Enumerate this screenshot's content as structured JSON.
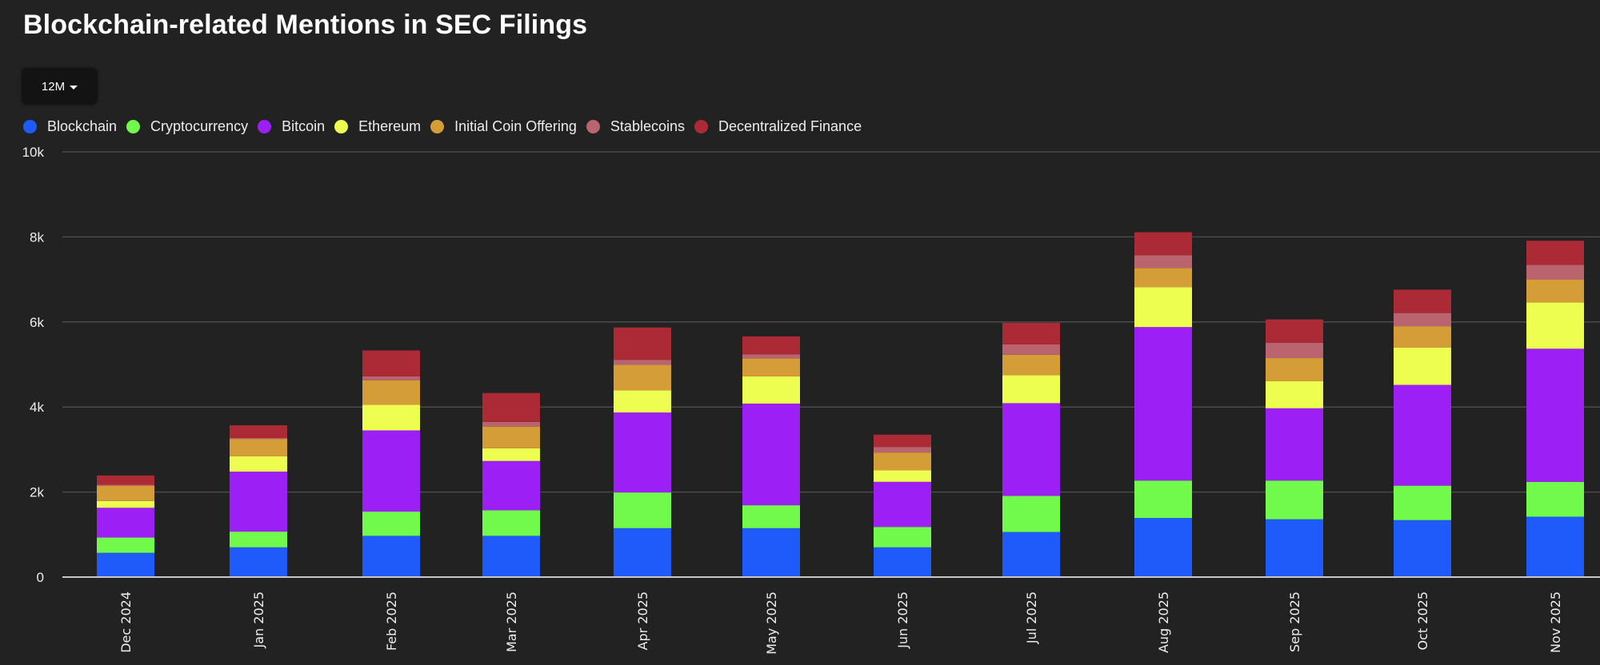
{
  "header": {
    "title": "Blockchain-related Mentions in SEC Filings"
  },
  "controls": {
    "range_selector": {
      "selected": "12M",
      "icon": "caret-down-icon"
    }
  },
  "chart_data": {
    "type": "bar",
    "stacked": true,
    "title": "Blockchain-related Mentions in SEC Filings",
    "xlabel": "",
    "ylabel": "",
    "ylim": [
      0,
      10000
    ],
    "yticks": [
      0,
      2000,
      4000,
      6000,
      8000,
      10000
    ],
    "ytick_labels": [
      "0",
      "2k",
      "4k",
      "6k",
      "8k",
      "10k"
    ],
    "grid": true,
    "legend_position": "top-left",
    "categories": [
      "Dec 2024",
      "Jan 2025",
      "Feb 2025",
      "Mar 2025",
      "Apr 2025",
      "May 2025",
      "Jun 2025",
      "Jul 2025",
      "Aug 2025",
      "Sep 2025",
      "Oct 2025",
      "Nov 2025"
    ],
    "series": [
      {
        "name": "Blockchain",
        "color": "#1f5bfa",
        "values": [
          570,
          700,
          970,
          970,
          1150,
          1150,
          700,
          1060,
          1390,
          1360,
          1340,
          1420
        ]
      },
      {
        "name": "Cryptocurrency",
        "color": "#71f94c",
        "values": [
          360,
          370,
          570,
          600,
          840,
          540,
          480,
          850,
          880,
          910,
          810,
          820
        ]
      },
      {
        "name": "Bitcoin",
        "color": "#9c1ff5",
        "values": [
          700,
          1410,
          1910,
          1160,
          1880,
          2390,
          1060,
          2180,
          3610,
          1700,
          2370,
          3130
        ]
      },
      {
        "name": "Ethereum",
        "color": "#eefe51",
        "values": [
          160,
          360,
          600,
          300,
          520,
          640,
          270,
          660,
          940,
          640,
          880,
          1090
        ]
      },
      {
        "name": "Initial Coin Offering",
        "color": "#d49d37",
        "values": [
          360,
          410,
          580,
          510,
          600,
          420,
          420,
          480,
          450,
          540,
          500,
          540
        ]
      },
      {
        "name": "Stablecoins",
        "color": "#b9646f",
        "values": [
          20,
          20,
          90,
          110,
          120,
          100,
          130,
          240,
          300,
          360,
          310,
          340
        ]
      },
      {
        "name": "Decentralized Finance",
        "color": "#ab2a36",
        "values": [
          220,
          300,
          610,
          680,
          760,
          420,
          290,
          510,
          540,
          550,
          550,
          570
        ]
      }
    ]
  }
}
